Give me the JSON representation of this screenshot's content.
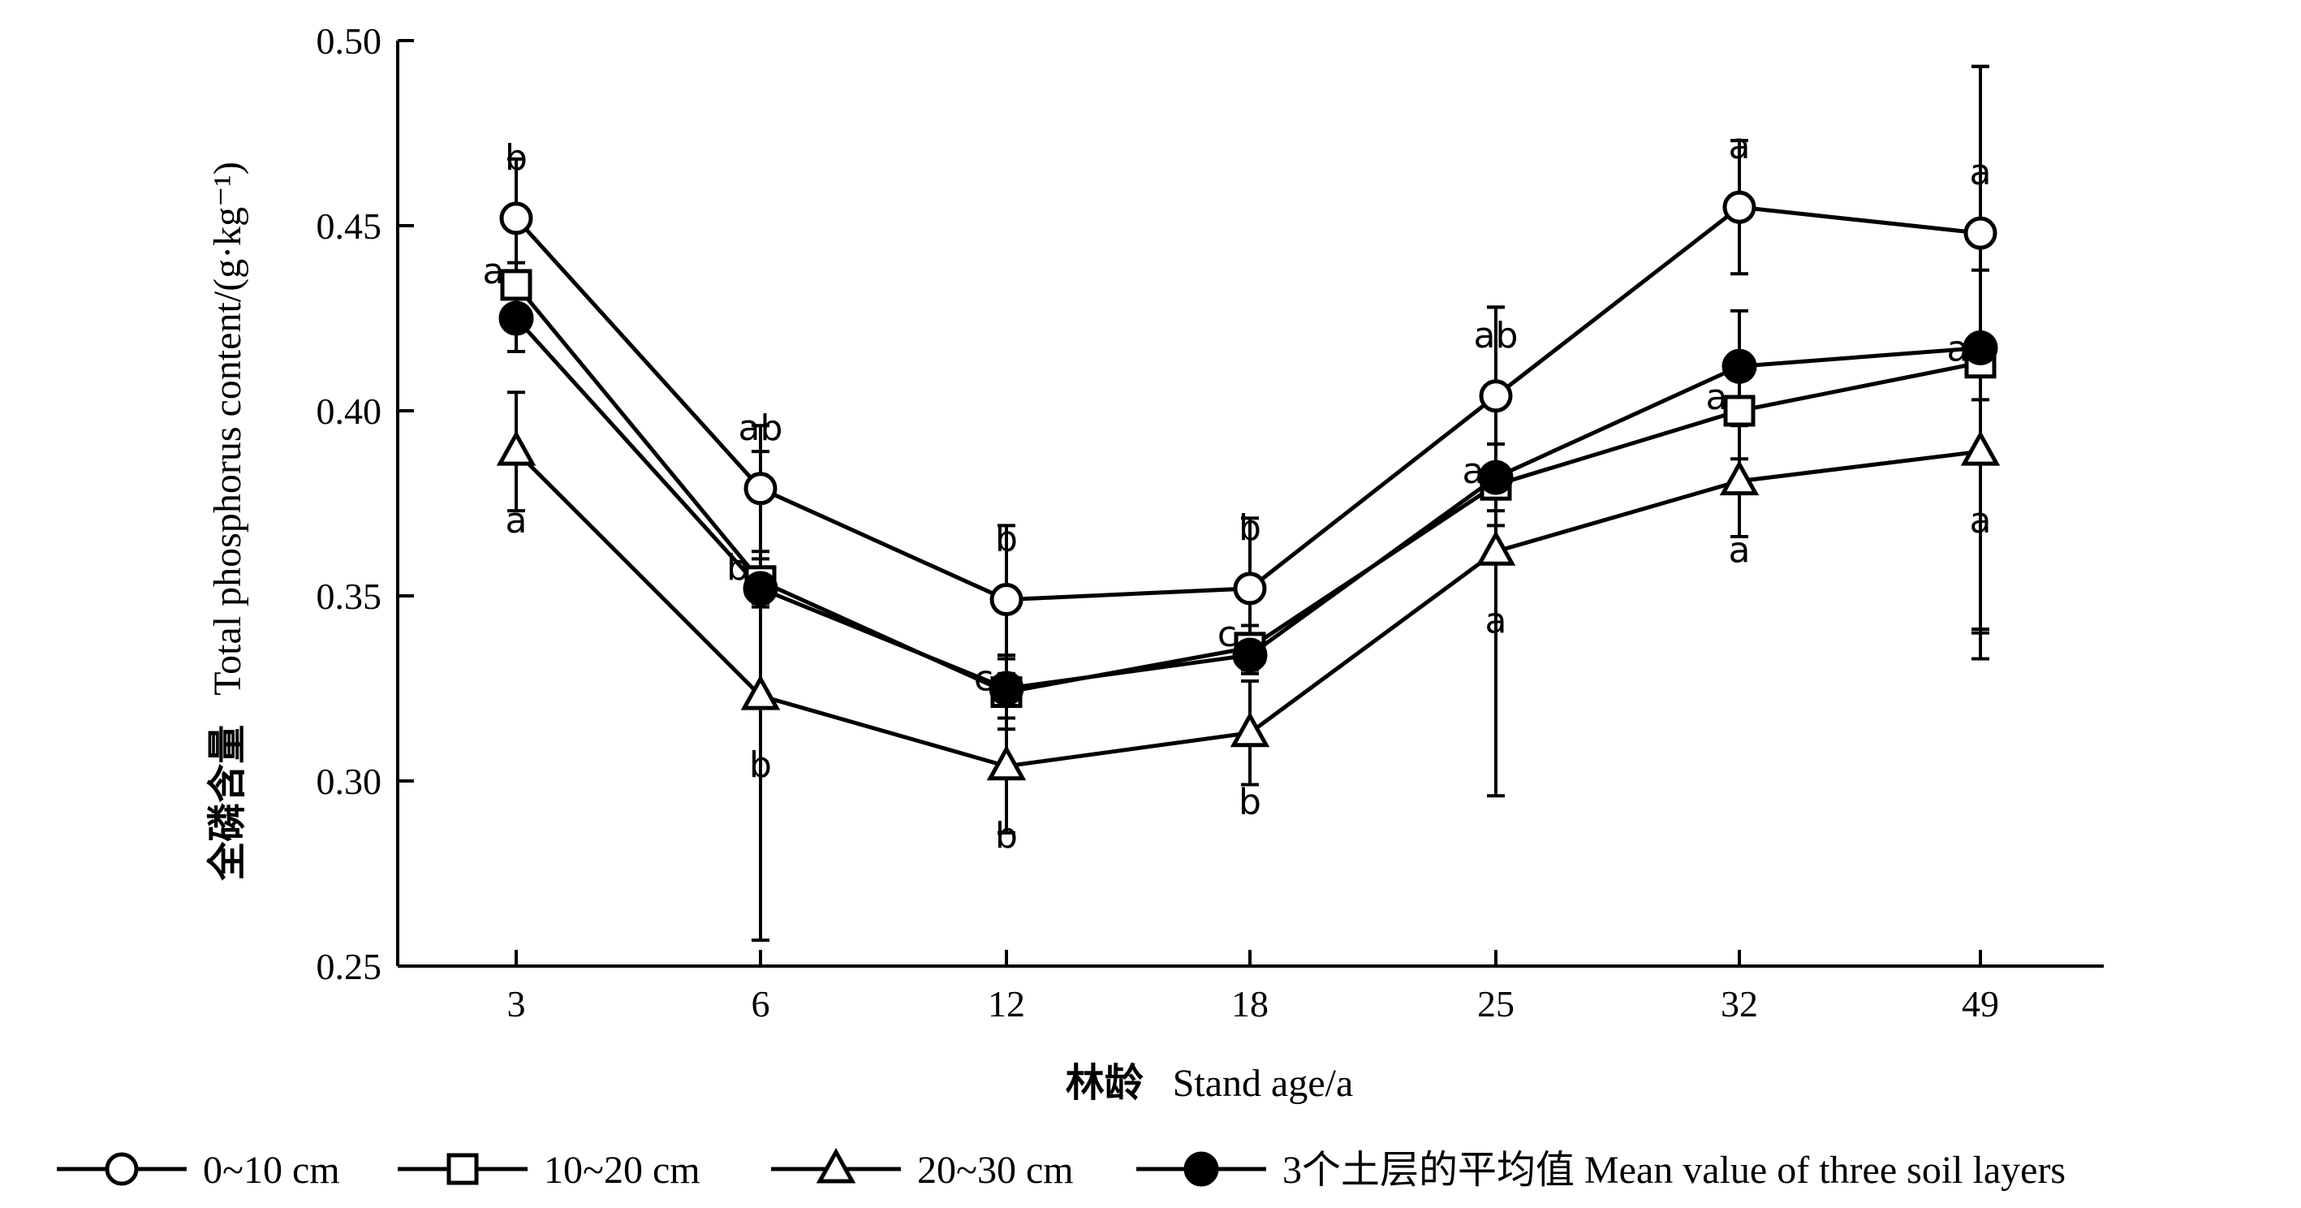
{
  "chart_data": {
    "type": "line",
    "xlabel_cn": "林龄",
    "xlabel_en": "Stand age/a",
    "ylabel_cn": "全磷含量",
    "ylabel_en": "Total phosphorus content/(g·kg⁻¹)",
    "categories": [
      "3",
      "6",
      "12",
      "18",
      "25",
      "32",
      "49"
    ],
    "ylim": [
      0.25,
      0.5
    ],
    "yticks": [
      0.25,
      0.3,
      0.35,
      0.4,
      0.45,
      0.5
    ],
    "ytick_labels": [
      "0.25",
      "0.30",
      "0.35",
      "0.40",
      "0.45",
      "0.50"
    ],
    "grid": false,
    "legend_position": "bottom",
    "series": [
      {
        "name": "0~10 cm",
        "marker": "open-circle",
        "values": [
          0.452,
          0.379,
          0.349,
          0.352,
          0.404,
          0.455,
          0.448
        ],
        "errors": [
          0.016,
          0.017,
          0.02,
          0.019,
          0.024,
          0.018,
          0.045
        ],
        "letters": [
          "b",
          "ab",
          "b",
          "b",
          "ab",
          "a",
          "a"
        ]
      },
      {
        "name": "10~20 cm",
        "marker": "open-square",
        "values": [
          0.434,
          0.354,
          0.324,
          0.336,
          0.38,
          0.4,
          0.413
        ],
        "errors": [
          0.006,
          0.006,
          0.01,
          0.006,
          0.011,
          0.013,
          0.08
        ],
        "letters": [
          "a",
          "b",
          "c",
          "c",
          "a",
          "a",
          "a"
        ]
      },
      {
        "name": "20~30 cm",
        "marker": "open-triangle",
        "values": [
          0.389,
          0.323,
          0.304,
          0.313,
          0.362,
          0.381,
          0.389
        ],
        "errors": [
          0.016,
          0.066,
          0.018,
          0.014,
          0.066,
          0.015,
          0.049
        ],
        "letters": [
          "a",
          "b",
          "b",
          "b",
          "a",
          "a",
          "a"
        ]
      },
      {
        "name": "3个土层的平均值 Mean value of three soil layers",
        "marker": "filled-circle",
        "values": [
          0.425,
          0.352,
          0.325,
          0.334,
          0.382,
          0.412,
          0.417
        ],
        "errors": [
          0.009,
          0.005,
          0.008,
          0.005,
          0.009,
          0.015,
          0.076
        ],
        "letters": []
      }
    ]
  }
}
